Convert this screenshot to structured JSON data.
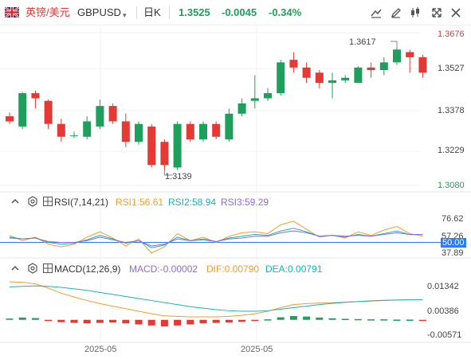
{
  "header": {
    "pair_name": "英镑/美元",
    "symbol": "GBPUSD",
    "symbol_dropdown_icon": "caret-down-icon",
    "timeframe": "日K",
    "price": "1.3525",
    "change": "-0.0045",
    "change_pct": "-0.34%",
    "colors": {
      "up": "#1ea05c",
      "down": "#e53935",
      "accent": "#2f7bf5"
    }
  },
  "main_chart": {
    "y_ticks": [
      "1.3676",
      "1.3527",
      "1.3378",
      "1.3229",
      "1.3080"
    ],
    "high_label": "1.3617",
    "low_label": "1.3139"
  },
  "rsi": {
    "name": "RSI(7,14,21)",
    "rsi1": "RSI1:56.61",
    "rsi2": "RSI2:58.94",
    "rsi3": "RSI3:59.29",
    "ticks": [
      "76.62",
      "57.26",
      "50.00",
      "37.89"
    ]
  },
  "macd": {
    "name": "MACD(12,26,9)",
    "macd": "MACD:-0.00002",
    "dif": "DIF:0.00790",
    "dea": "DEA:0.00791",
    "ticks": [
      "0.01342",
      "0.00386",
      "-0.00571"
    ]
  },
  "x_labels": [
    "2025-05",
    "2025-05"
  ],
  "chart_data": {
    "type": "candlestick",
    "candles": [
      [
        1.335,
        1.333,
        1.3365,
        1.332
      ],
      [
        1.331,
        1.344,
        1.3445,
        1.33
      ],
      [
        1.344,
        1.342,
        1.345,
        1.338
      ],
      [
        1.341,
        1.332,
        1.3415,
        1.33
      ],
      [
        1.332,
        1.327,
        1.334,
        1.325
      ],
      [
        1.3275,
        1.3275,
        1.329,
        1.3265
      ],
      [
        1.327,
        1.333,
        1.335,
        1.326
      ],
      [
        1.331,
        1.339,
        1.3415,
        1.33
      ],
      [
        1.339,
        1.333,
        1.34,
        1.332
      ],
      [
        1.333,
        1.325,
        1.336,
        1.323
      ],
      [
        1.325,
        1.332,
        1.333,
        1.324
      ],
      [
        1.331,
        1.316,
        1.332,
        1.315
      ],
      [
        1.325,
        1.316,
        1.326,
        1.3139
      ],
      [
        1.315,
        1.332,
        1.333,
        1.314
      ],
      [
        1.332,
        1.326,
        1.333,
        1.325
      ],
      [
        1.326,
        1.332,
        1.333,
        1.325
      ],
      [
        1.332,
        1.327,
        1.333,
        1.326
      ],
      [
        1.326,
        1.336,
        1.338,
        1.325
      ],
      [
        1.336,
        1.34,
        1.342,
        1.335
      ],
      [
        1.341,
        1.342,
        1.351,
        1.338
      ],
      [
        1.342,
        1.344,
        1.346,
        1.341
      ],
      [
        1.344,
        1.356,
        1.357,
        1.343
      ],
      [
        1.357,
        1.354,
        1.36,
        1.352
      ],
      [
        1.354,
        1.35,
        1.356,
        1.348
      ],
      [
        1.352,
        1.348,
        1.353,
        1.346
      ],
      [
        1.348,
        1.349,
        1.352,
        1.342
      ],
      [
        1.349,
        1.35,
        1.351,
        1.348
      ],
      [
        1.348,
        1.354,
        1.3545,
        1.348
      ],
      [
        1.354,
        1.353,
        1.356,
        1.35
      ],
      [
        1.353,
        1.356,
        1.358,
        1.351
      ],
      [
        1.356,
        1.361,
        1.3617,
        1.355
      ],
      [
        1.36,
        1.358,
        1.361,
        1.352
      ],
      [
        1.358,
        1.352,
        1.359,
        1.35
      ]
    ],
    "rsi1": [
      58,
      52,
      56,
      48,
      45,
      48,
      56,
      62,
      55,
      46,
      54,
      38,
      45,
      60,
      52,
      56,
      50,
      57,
      61,
      62,
      60,
      70,
      74,
      65,
      56,
      58,
      55,
      62,
      58,
      64,
      68,
      60,
      57
    ],
    "rsi2": [
      56,
      54,
      55,
      50,
      48,
      49,
      53,
      58,
      54,
      49,
      52,
      44,
      47,
      56,
      52,
      54,
      51,
      55,
      57,
      59,
      58,
      63,
      66,
      62,
      57,
      58,
      56,
      59,
      57,
      60,
      63,
      59,
      59
    ],
    "rsi3": [
      55,
      54,
      55,
      51,
      50,
      50,
      52,
      56,
      53,
      50,
      52,
      46,
      48,
      54,
      52,
      53,
      51,
      54,
      55,
      57,
      57,
      61,
      63,
      61,
      57,
      58,
      57,
      58,
      57,
      59,
      61,
      59,
      59
    ],
    "macd_hist": [
      0.0005,
      0.0009,
      0.0007,
      -0.0003,
      -0.0009,
      -0.0012,
      -0.0014,
      -0.0012,
      -0.001,
      -0.0014,
      -0.0018,
      -0.0022,
      -0.0026,
      -0.0022,
      -0.0018,
      -0.0014,
      -0.0012,
      -0.001,
      -0.0008,
      -0.0004,
      0.0002,
      0.001,
      0.0015,
      0.0013,
      0.0009,
      0.0006,
      0.0004,
      0.0003,
      0.0002,
      0.0002,
      0.0001,
      0.0001,
      -2e-05
    ],
    "macd_dif": [
      0.015,
      0.0148,
      0.0142,
      0.0125,
      0.0105,
      0.009,
      0.0076,
      0.0064,
      0.0054,
      0.0044,
      0.0034,
      0.0024,
      0.0016,
      0.0014,
      0.0012,
      0.0012,
      0.0012,
      0.0014,
      0.0018,
      0.0024,
      0.0034,
      0.0048,
      0.006,
      0.0064,
      0.0066,
      0.0068,
      0.007,
      0.0072,
      0.0074,
      0.0076,
      0.0078,
      0.0079,
      0.0079
    ],
    "macd_dea": [
      0.013,
      0.0132,
      0.0134,
      0.0132,
      0.0128,
      0.0122,
      0.0116,
      0.0108,
      0.01,
      0.0092,
      0.0084,
      0.0076,
      0.0068,
      0.006,
      0.0052,
      0.0046,
      0.004,
      0.0036,
      0.0034,
      0.0034,
      0.0036,
      0.0042,
      0.0048,
      0.0054,
      0.006,
      0.0065,
      0.0069,
      0.0072,
      0.0075,
      0.0077,
      0.0078,
      0.0079,
      0.0079
    ]
  }
}
